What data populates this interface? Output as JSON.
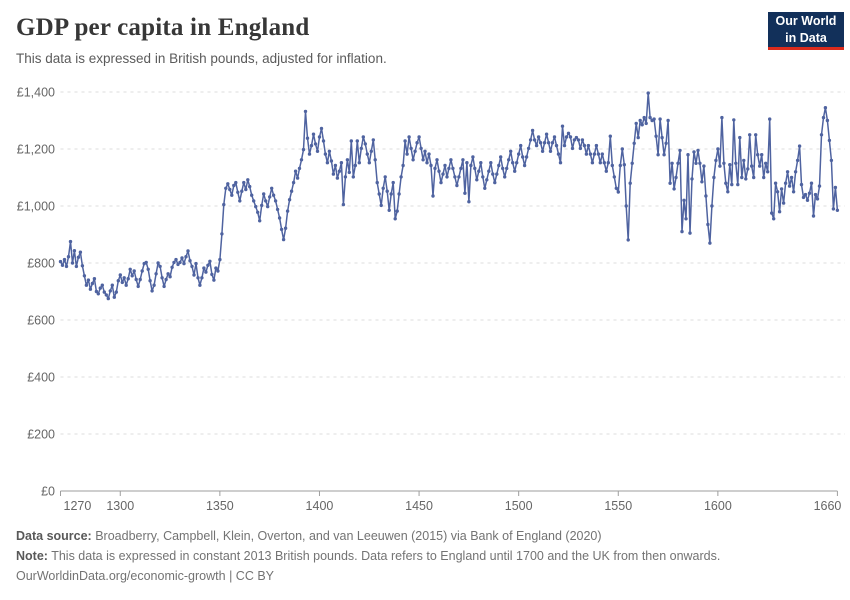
{
  "header": {
    "title": "GDP per capita in England",
    "subtitle": "This data is expressed in British pounds, adjusted for inflation."
  },
  "logo": {
    "line1": "Our World",
    "line2": "in Data",
    "bg_color": "#12305a",
    "accent_color": "#dc2b1c"
  },
  "chart_data": {
    "type": "line",
    "title": "GDP per capita in England",
    "xlabel": "",
    "ylabel": "",
    "xlim": [
      1270,
      1660
    ],
    "ylim": [
      0,
      1400
    ],
    "grid": "horizontal-dashed",
    "legend": "none",
    "series_name": "GDP per capita (constant 2013 British pounds)",
    "line_color": "#4f63a0",
    "marker": "circle",
    "x_ticks": [
      {
        "v": 1270,
        "label": "1270"
      },
      {
        "v": 1300,
        "label": "1300"
      },
      {
        "v": 1350,
        "label": "1350"
      },
      {
        "v": 1400,
        "label": "1400"
      },
      {
        "v": 1450,
        "label": "1450"
      },
      {
        "v": 1500,
        "label": "1500"
      },
      {
        "v": 1550,
        "label": "1550"
      },
      {
        "v": 1600,
        "label": "1600"
      },
      {
        "v": 1660,
        "label": "1660"
      }
    ],
    "y_ticks": [
      {
        "v": 0,
        "label": "£0"
      },
      {
        "v": 200,
        "label": "£200"
      },
      {
        "v": 400,
        "label": "£400"
      },
      {
        "v": 600,
        "label": "£600"
      },
      {
        "v": 800,
        "label": "£800"
      },
      {
        "v": 1000,
        "label": "£1,000"
      },
      {
        "v": 1200,
        "label": "£1,200"
      },
      {
        "v": 1400,
        "label": "£1,400"
      }
    ],
    "x_start": 1270,
    "x_step": 1,
    "values": [
      805,
      792,
      812,
      788,
      822,
      875,
      800,
      843,
      788,
      820,
      838,
      790,
      755,
      722,
      740,
      708,
      728,
      745,
      700,
      692,
      712,
      722,
      698,
      688,
      675,
      702,
      722,
      680,
      698,
      738,
      758,
      732,
      748,
      722,
      745,
      778,
      755,
      772,
      742,
      718,
      742,
      772,
      798,
      802,
      778,
      738,
      702,
      722,
      762,
      800,
      788,
      748,
      718,
      742,
      762,
      752,
      785,
      802,
      812,
      795,
      802,
      818,
      798,
      822,
      842,
      808,
      788,
      758,
      798,
      748,
      722,
      748,
      782,
      768,
      792,
      806,
      760,
      740,
      782,
      772,
      812,
      902,
      1005,
      1062,
      1078,
      1058,
      1038,
      1072,
      1082,
      1048,
      1018,
      1052,
      1082,
      1058,
      1092,
      1068,
      1038,
      1018,
      998,
      978,
      948,
      1002,
      1042,
      1018,
      998,
      1032,
      1062,
      1038,
      1018,
      988,
      958,
      918,
      882,
      922,
      982,
      1022,
      1052,
      1082,
      1122,
      1098,
      1132,
      1162,
      1198,
      1332,
      1238,
      1182,
      1212,
      1252,
      1218,
      1192,
      1242,
      1272,
      1228,
      1182,
      1152,
      1192,
      1158,
      1112,
      1142,
      1098,
      1122,
      1152,
      1005,
      1102,
      1162,
      1118,
      1228,
      1102,
      1142,
      1228,
      1152,
      1202,
      1242,
      1218,
      1182,
      1152,
      1192,
      1232,
      1162,
      1082,
      1042,
      1002,
      1062,
      1102,
      1052,
      985,
      1042,
      1082,
      955,
      982,
      1042,
      1102,
      1142,
      1228,
      1182,
      1242,
      1202,
      1162,
      1192,
      1222,
      1242,
      1202,
      1162,
      1192,
      1152,
      1182,
      1142,
      1035,
      1132,
      1162,
      1122,
      1082,
      1112,
      1142,
      1102,
      1132,
      1162,
      1132,
      1102,
      1072,
      1102,
      1132,
      1162,
      1045,
      1152,
      1015,
      1142,
      1172,
      1132,
      1092,
      1122,
      1152,
      1102,
      1062,
      1092,
      1122,
      1152,
      1112,
      1082,
      1112,
      1142,
      1172,
      1132,
      1102,
      1132,
      1162,
      1192,
      1152,
      1122,
      1152,
      1182,
      1212,
      1172,
      1142,
      1172,
      1202,
      1232,
      1265,
      1232,
      1212,
      1242,
      1222,
      1192,
      1222,
      1252,
      1222,
      1192,
      1222,
      1242,
      1212,
      1182,
      1152,
      1280,
      1212,
      1242,
      1255,
      1242,
      1202,
      1232,
      1240,
      1232,
      1202,
      1232,
      1212,
      1182,
      1212,
      1182,
      1152,
      1182,
      1212,
      1182,
      1152,
      1182,
      1152,
      1122,
      1152,
      1245,
      1142,
      1102,
      1062,
      1049,
      1142,
      1200,
      1145,
      1000,
      881,
      1080,
      1150,
      1220,
      1290,
      1240,
      1300,
      1285,
      1310,
      1290,
      1396,
      1310,
      1300,
      1305,
      1245,
      1180,
      1305,
      1240,
      1180,
      1220,
      1300,
      1080,
      1150,
      1060,
      1100,
      1150,
      1195,
      910,
      1020,
      955,
      1180,
      905,
      1095,
      1190,
      1150,
      1195,
      1150,
      1085,
      1140,
      1035,
      935,
      870,
      1000,
      1100,
      1160,
      1200,
      1140,
      1310,
      1150,
      1080,
      1050,
      1145,
      1075,
      1302,
      1150,
      1075,
      1240,
      1100,
      1160,
      1095,
      1130,
      1250,
      1140,
      1100,
      1250,
      1180,
      1140,
      1180,
      1100,
      1150,
      1120,
      1305,
      975,
      955,
      1080,
      1050,
      980,
      1060,
      1010,
      1080,
      1120,
      1070,
      1100,
      1050,
      1120,
      1160,
      1210,
      1075,
      1030,
      1040,
      1020,
      1045,
      1080,
      965,
      1040,
      1025,
      1070,
      1250,
      1310,
      1345,
      1300,
      1230,
      1160,
      990,
      1065,
      985
    ]
  },
  "footer": {
    "source_label": "Data source:",
    "source_text": "Broadberry, Campbell, Klein, Overton, and van Leeuwen (2015) via Bank of England (2020)",
    "note_label": "Note:",
    "note_text": "This data is expressed in constant 2013 British pounds. Data refers to England until 1700 and the UK from then onwards.",
    "url": "OurWorldinData.org/economic-growth",
    "separator": "|",
    "license": "CC BY"
  }
}
